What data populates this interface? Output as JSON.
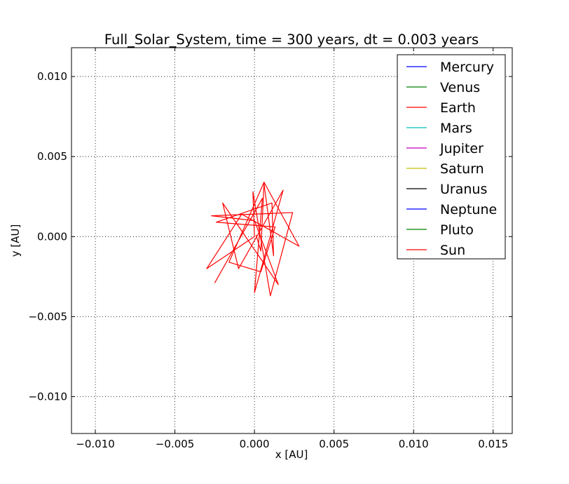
{
  "chart_data": {
    "type": "line",
    "title": "Full_Solar_System, time = 300 years, dt = 0.003 years",
    "xlabel": "x [AU]",
    "ylabel": "y [AU]",
    "xlim": [
      -0.0115,
      0.0162
    ],
    "ylim": [
      -0.0123,
      0.0118
    ],
    "grid": true,
    "grid_style": "dotted",
    "x_ticks": [
      -0.01,
      -0.005,
      0.0,
      0.005,
      0.01,
      0.015
    ],
    "x_tick_labels": [
      "−0.010",
      "−0.005",
      "0.000",
      "0.005",
      "0.010",
      "0.015"
    ],
    "y_ticks": [
      -0.01,
      -0.005,
      0.0,
      0.005,
      0.01
    ],
    "y_tick_labels": [
      "−0.010",
      "−0.005",
      "0.000",
      "0.005",
      "0.010"
    ],
    "legend_position": "top-right",
    "series": [
      {
        "name": "Mercury",
        "color": "#0000ff",
        "points": []
      },
      {
        "name": "Venus",
        "color": "#008000",
        "points": []
      },
      {
        "name": "Earth",
        "color": "#ff0000",
        "points": []
      },
      {
        "name": "Mars",
        "color": "#00bfbf",
        "points": []
      },
      {
        "name": "Jupiter",
        "color": "#bf00bf",
        "points": []
      },
      {
        "name": "Saturn",
        "color": "#bfbf00",
        "points": []
      },
      {
        "name": "Uranus",
        "color": "#000000",
        "points": []
      },
      {
        "name": "Neptune",
        "color": "#0000ff",
        "points": []
      },
      {
        "name": "Pluto",
        "color": "#008000",
        "points": []
      },
      {
        "name": "Sun",
        "color": "#ff0000",
        "points": [
          [
            -0.0025,
            -0.0029
          ],
          [
            0.0005,
            0.0024
          ],
          [
            0.0,
            -0.0035
          ],
          [
            0.0018,
            0.0029
          ],
          [
            -0.001,
            -0.002
          ],
          [
            -0.002,
            0.0021
          ],
          [
            0.0015,
            -0.003
          ],
          [
            0.0,
            0.001
          ],
          [
            -0.0027,
            0.0013
          ],
          [
            0.0024,
            0.0015
          ],
          [
            0.001,
            -0.0037
          ],
          [
            -0.0001,
            0.0028
          ],
          [
            0.0,
            0.0
          ],
          [
            -0.003,
            -0.002
          ],
          [
            -0.0008,
            0.0014
          ],
          [
            0.0028,
            -0.0006
          ],
          [
            0.0006,
            0.0034
          ],
          [
            -0.0016,
            -0.0016
          ],
          [
            0.0004,
            -0.0022
          ],
          [
            0.0013,
            0.0006
          ],
          [
            -0.0024,
            0.0009
          ],
          [
            0.0011,
            0.0021
          ],
          [
            0.0012,
            -0.0012
          ],
          [
            0.0006,
            0.0033
          ],
          [
            0.0004,
            -0.0009
          ],
          [
            0.0001,
            0.0001
          ]
        ]
      }
    ]
  }
}
